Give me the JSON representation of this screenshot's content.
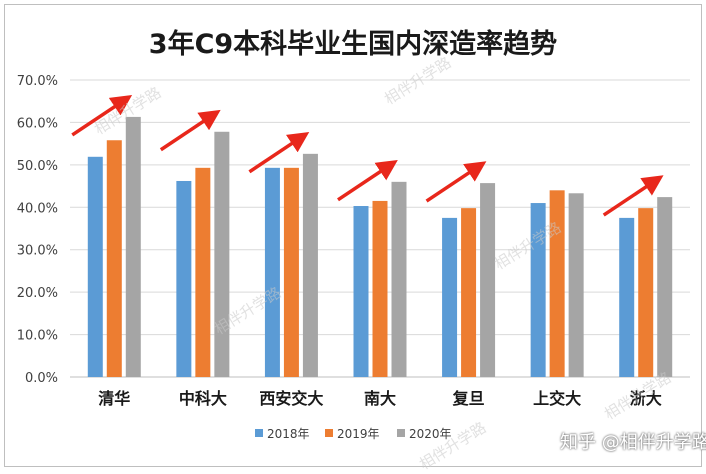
{
  "chart_data": {
    "type": "bar",
    "title": "3年C9本科毕业生国内深造率趋势",
    "categories": [
      "清华",
      "中科大",
      "西安交大",
      "南大",
      "复旦",
      "上交大",
      "浙大"
    ],
    "series": [
      {
        "name": "2018年",
        "color": "#5b9bd5",
        "values": [
          51.9,
          46.2,
          49.3,
          40.3,
          37.5,
          41.0,
          37.5
        ]
      },
      {
        "name": "2019年",
        "color": "#ed7d31",
        "values": [
          55.8,
          49.3,
          49.3,
          41.5,
          39.8,
          44.0,
          39.8
        ]
      },
      {
        "name": "2020年",
        "color": "#a5a5a5",
        "values": [
          61.3,
          57.8,
          52.6,
          46.0,
          45.7,
          43.3,
          42.4
        ]
      }
    ],
    "ylim": [
      0,
      70
    ],
    "yticks": [
      "0.0%",
      "10.0%",
      "20.0%",
      "30.0%",
      "40.0%",
      "50.0%",
      "60.0%",
      "70.0%"
    ],
    "grid": true,
    "legend_position": "bottom",
    "trend_arrows_on": [
      "清华",
      "中科大",
      "西安交大",
      "南大",
      "复旦",
      "浙大"
    ],
    "arrow_color": "#e8271b"
  },
  "watermark": "相伴升学路",
  "source_mark": "知乎 @相伴升学路"
}
